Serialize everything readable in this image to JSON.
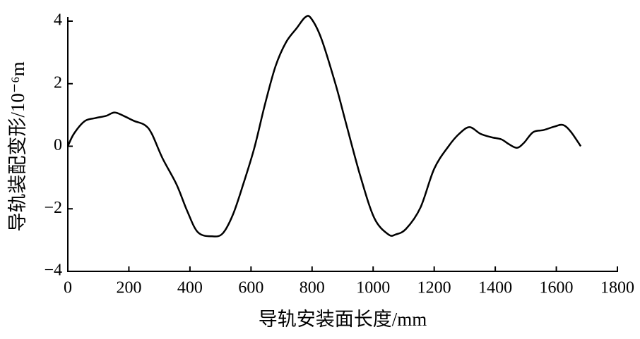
{
  "chart_data": {
    "type": "line",
    "xlabel": "导轨安装面长度/mm",
    "ylabel": "导轨装配变形/10⁻⁶m",
    "x": [
      0,
      20,
      55,
      90,
      125,
      153,
      183,
      217,
      252,
      275,
      310,
      356,
      391,
      426,
      472,
      507,
      541,
      576,
      611,
      645,
      680,
      715,
      750,
      777,
      796,
      830,
      877,
      911,
      958,
      1004,
      1050,
      1074,
      1108,
      1155,
      1200,
      1247,
      1282,
      1316,
      1351,
      1386,
      1420,
      1444,
      1471,
      1494,
      1524,
      1559,
      1594,
      1622,
      1647,
      1680
    ],
    "series": [
      {
        "color": "#000000",
        "values": [
          0,
          0.4,
          0.8,
          0.9,
          0.97,
          1.08,
          0.97,
          0.81,
          0.68,
          0.4,
          -0.38,
          -1.22,
          -2.07,
          -2.75,
          -2.88,
          -2.79,
          -2.18,
          -1.17,
          -0.05,
          1.31,
          2.55,
          3.33,
          3.78,
          4.12,
          4.1,
          3.45,
          1.98,
          0.74,
          -0.95,
          -2.3,
          -2.82,
          -2.82,
          -2.64,
          -1.96,
          -0.72,
          0,
          0.4,
          0.61,
          0.4,
          0.29,
          0.22,
          0.07,
          -0.05,
          0.11,
          0.45,
          0.52,
          0.63,
          0.68,
          0.47,
          0
        ]
      }
    ],
    "xlim": [
      0,
      1800
    ],
    "xticks": [
      0,
      200,
      400,
      600,
      800,
      1000,
      1200,
      1400,
      1600,
      1800
    ],
    "ylim": [
      -4,
      4
    ],
    "yticks": [
      {
        "value": -4,
        "label": "−4"
      },
      {
        "value": -2,
        "label": "−2"
      },
      0,
      2,
      4
    ],
    "grid": false
  }
}
